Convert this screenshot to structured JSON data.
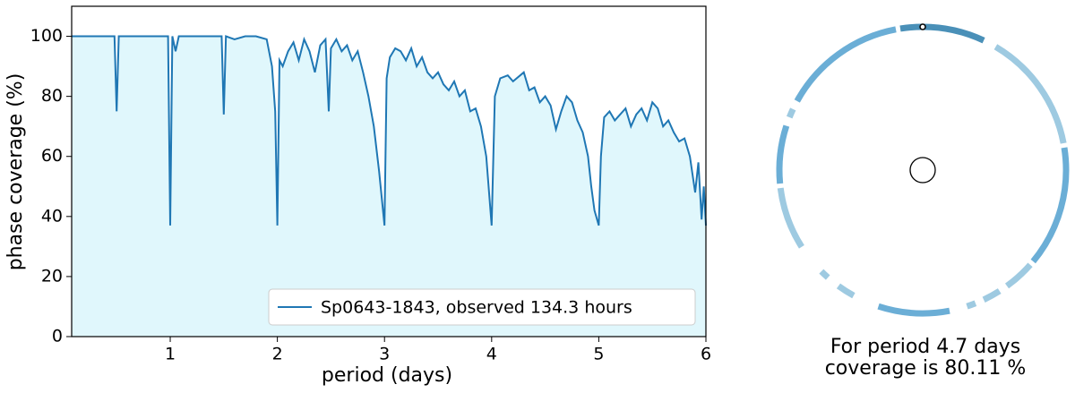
{
  "chart_data": [
    {
      "type": "line",
      "xlabel": "period (days)",
      "ylabel": "phase coverage (%)",
      "xlim": [
        0.08,
        6
      ],
      "ylim": [
        0,
        110
      ],
      "xticks": [
        1,
        2,
        3,
        4,
        5,
        6
      ],
      "yticks": [
        0,
        20,
        40,
        60,
        80,
        100
      ],
      "legend": "lower right",
      "fill_color": "#e0f7fc",
      "series": [
        {
          "name": "Sp0643-1843, observed 134.3 hours",
          "color": "#1f77b4",
          "x": [
            0.08,
            0.45,
            0.48,
            0.5,
            0.52,
            0.95,
            0.98,
            1.0,
            1.02,
            1.05,
            1.08,
            1.48,
            1.5,
            1.52,
            1.6,
            1.7,
            1.8,
            1.9,
            1.95,
            1.98,
            2.0,
            2.02,
            2.05,
            2.1,
            2.15,
            2.2,
            2.25,
            2.3,
            2.35,
            2.4,
            2.45,
            2.48,
            2.5,
            2.55,
            2.6,
            2.65,
            2.7,
            2.75,
            2.8,
            2.85,
            2.9,
            2.95,
            3.0,
            3.02,
            3.05,
            3.1,
            3.15,
            3.2,
            3.25,
            3.3,
            3.35,
            3.4,
            3.45,
            3.5,
            3.55,
            3.6,
            3.65,
            3.7,
            3.75,
            3.8,
            3.85,
            3.9,
            3.95,
            4.0,
            4.03,
            4.08,
            4.15,
            4.2,
            4.3,
            4.35,
            4.4,
            4.45,
            4.5,
            4.55,
            4.6,
            4.65,
            4.7,
            4.75,
            4.8,
            4.85,
            4.9,
            4.93,
            4.96,
            5.0,
            5.02,
            5.05,
            5.1,
            5.15,
            5.2,
            5.25,
            5.3,
            5.35,
            5.4,
            5.45,
            5.5,
            5.55,
            5.6,
            5.65,
            5.7,
            5.75,
            5.8,
            5.85,
            5.9,
            5.93,
            5.96,
            5.98,
            6.0
          ],
          "values": [
            100,
            100,
            100,
            75,
            100,
            100,
            100,
            37,
            100,
            95,
            100,
            100,
            74,
            100,
            99,
            100,
            100,
            99,
            90,
            75,
            37,
            92,
            90,
            95,
            98,
            92,
            99,
            95,
            88,
            97,
            99,
            75,
            96,
            99,
            95,
            97,
            92,
            95,
            88,
            80,
            70,
            55,
            37,
            86,
            93,
            96,
            95,
            92,
            96,
            90,
            93,
            88,
            86,
            88,
            84,
            82,
            85,
            80,
            82,
            75,
            76,
            70,
            60,
            37,
            80,
            86,
            87,
            85,
            88,
            82,
            83,
            78,
            80,
            77,
            69,
            75,
            80,
            78,
            72,
            68,
            60,
            50,
            42,
            37,
            60,
            73,
            75,
            72,
            74,
            76,
            70,
            74,
            76,
            72,
            78,
            76,
            70,
            72,
            68,
            65,
            66,
            60,
            48,
            58,
            39,
            50,
            37
          ]
        }
      ]
    },
    {
      "type": "phase_ring",
      "caption": [
        "For period 4.7 days",
        "coverage is 80.11 %"
      ],
      "phase_start": [
        0.0,
        0.085,
        0.225,
        0.365,
        0.41,
        0.44,
        0.47,
        0.58,
        0.615,
        0.66,
        0.735,
        0.81,
        0.83,
        0.975
      ],
      "phase_end": [
        0.07,
        0.22,
        0.36,
        0.4,
        0.43,
        0.45,
        0.55,
        0.6,
        0.625,
        0.73,
        0.8,
        0.82,
        0.97,
        1.0
      ],
      "colors": [
        "#4a90b8",
        "#9ecae1",
        "#6baed6",
        "#9ecae1",
        "#9ecae1",
        "#9ecae1",
        "#6baed6",
        "#9ecae1",
        "#9ecae1",
        "#9ecae1",
        "#6baed6",
        "#9ecae1",
        "#6baed6",
        "#4a90b8"
      ]
    }
  ]
}
